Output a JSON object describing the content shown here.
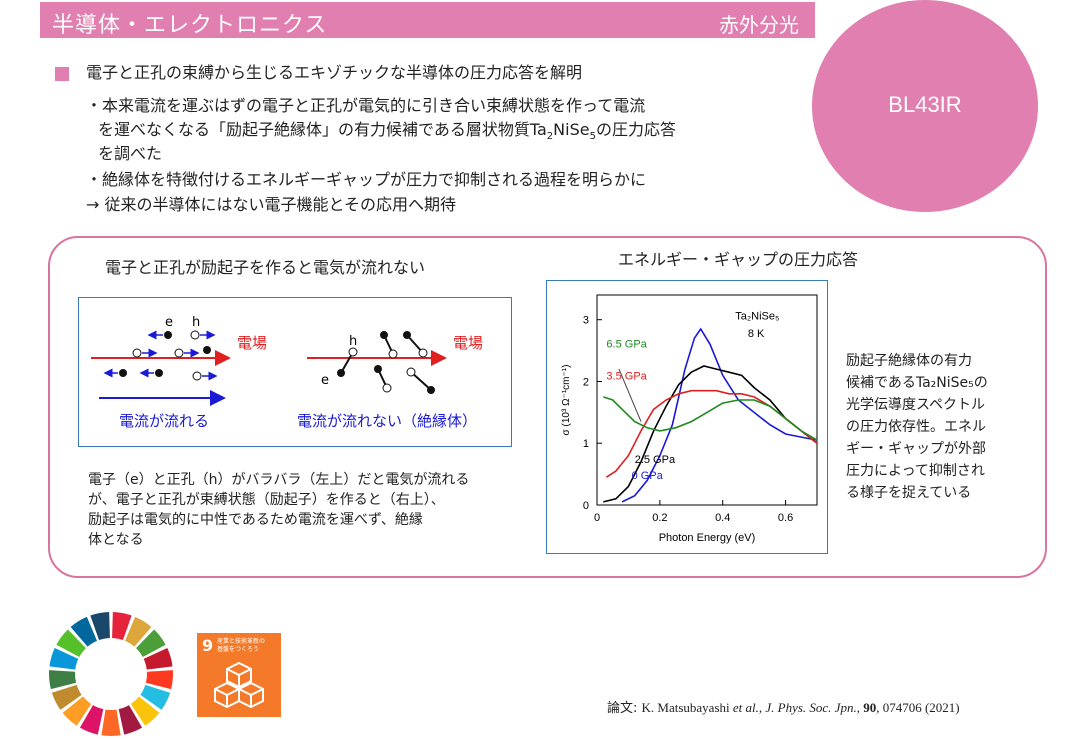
{
  "header": {
    "title": "半導体・エレクトロニクス",
    "category": "赤外分光"
  },
  "badge": {
    "label": "BL43IR"
  },
  "summary": {
    "heading": "電子と正孔の束縛から生じるエキゾチックな半導体の圧力応答を解明",
    "b1_l1": "・本来電流を運ぶはずの電子と正孔が電気的に引き合い束縛状態を作って電流",
    "b1_l2_pre": "を運べなくなる「励起子絶縁体」の有力候補である層状物質Ta",
    "b1_l2_sub1": "2",
    "b1_l2_mid": "NiSe",
    "b1_l2_sub2": "5",
    "b1_l2_post": "の圧力応答",
    "b1_l3": "を調べた",
    "b2": "・絶縁体を特徴付けるエネルギーギャップが圧力で抑制される過程を明らかに",
    "b3": "→ 従来の半導体にはない電子機能とその応用へ期待"
  },
  "left_panel": {
    "title": "電子と正孔が励起子を作ると電気が流れない",
    "field_label": "電場",
    "e_label": "e",
    "h_label": "h",
    "caption_left": "電流が流れる",
    "caption_right": "電流が流れない（絶縁体）",
    "desc": [
      "電子（e）と正孔（h）がバラバラ（左上）だと電気が流れる",
      "が、電子と正孔が束縛状態（励起子）を作ると（右上）、",
      "励起子は電気的に中性であるため電流を運べず、絶縁",
      "体となる"
    ]
  },
  "right_panel": {
    "title": "エネルギー・ギャップの圧力応答",
    "note": [
      "励起子絶縁体の有力",
      "候補であるTa₂NiSe₅の",
      "光学伝導度スペクトル",
      "の圧力依存性。エネル",
      "ギー・ギャップが外部",
      "圧力によって抑制され",
      "る様子を捉えている"
    ]
  },
  "chart_data": {
    "type": "line",
    "title": "",
    "xlabel": "Photon Energy (eV)",
    "ylabel": "σ (10³ Ω⁻¹cm⁻¹)",
    "xlim": [
      0,
      0.7
    ],
    "ylim": [
      0,
      3.4
    ],
    "xticks": [
      "0",
      "0.2",
      "0.4",
      "0.6"
    ],
    "yticks": [
      "0",
      "1",
      "2",
      "3"
    ],
    "annotations": {
      "sample": "Ta₂NiSe₅",
      "temp": "8 K"
    },
    "series": [
      {
        "name": "0 GPa",
        "color": "#1a1ad6",
        "x": [
          0.08,
          0.12,
          0.16,
          0.2,
          0.24,
          0.28,
          0.31,
          0.33,
          0.36,
          0.4,
          0.45,
          0.5,
          0.55,
          0.6,
          0.65,
          0.7
        ],
        "y": [
          0.05,
          0.15,
          0.4,
          0.8,
          1.3,
          2.2,
          2.7,
          2.85,
          2.6,
          2.1,
          1.7,
          1.5,
          1.3,
          1.15,
          1.1,
          1.05
        ]
      },
      {
        "name": "2.5 GPa",
        "color": "#000000",
        "x": [
          0.02,
          0.06,
          0.1,
          0.14,
          0.18,
          0.22,
          0.26,
          0.3,
          0.34,
          0.38,
          0.42,
          0.46,
          0.5,
          0.55,
          0.6,
          0.65,
          0.7
        ],
        "y": [
          0.05,
          0.1,
          0.3,
          0.7,
          1.2,
          1.6,
          1.95,
          2.15,
          2.25,
          2.2,
          2.15,
          2.1,
          1.9,
          1.7,
          1.4,
          1.2,
          1.0
        ]
      },
      {
        "name": "3.5 GPa",
        "color": "#e02020",
        "x": [
          0.03,
          0.06,
          0.1,
          0.14,
          0.18,
          0.22,
          0.26,
          0.3,
          0.34,
          0.38,
          0.42,
          0.46,
          0.5,
          0.55,
          0.6,
          0.65,
          0.7
        ],
        "y": [
          0.45,
          0.55,
          0.8,
          1.2,
          1.55,
          1.7,
          1.8,
          1.85,
          1.85,
          1.85,
          1.8,
          1.8,
          1.75,
          1.6,
          1.4,
          1.2,
          1.0
        ]
      },
      {
        "name": "6.5 GPa",
        "color": "#1f8a1f",
        "x": [
          0.02,
          0.05,
          0.08,
          0.12,
          0.16,
          0.2,
          0.25,
          0.3,
          0.35,
          0.4,
          0.45,
          0.5,
          0.55,
          0.6,
          0.65,
          0.7
        ],
        "y": [
          1.75,
          1.7,
          1.55,
          1.35,
          1.25,
          1.2,
          1.25,
          1.35,
          1.5,
          1.65,
          1.7,
          1.7,
          1.6,
          1.4,
          1.2,
          1.05
        ]
      }
    ]
  },
  "sdg": {
    "number": "9",
    "text_l1": "産業と技術革新の",
    "text_l2": "基盤をつくろう"
  },
  "source": {
    "prefix": "論文: ",
    "authors": "K. Matsubayashi ",
    "etal": "et al.",
    "journal": ", J. Phys. Soc. Jpn.",
    "vol": "90",
    "rest": ", 074706 (2021)"
  },
  "colors": {
    "accent": "#e07fb0",
    "frame": "#3a7ab8",
    "field": "#e02020",
    "current": "#1a1ad6"
  }
}
